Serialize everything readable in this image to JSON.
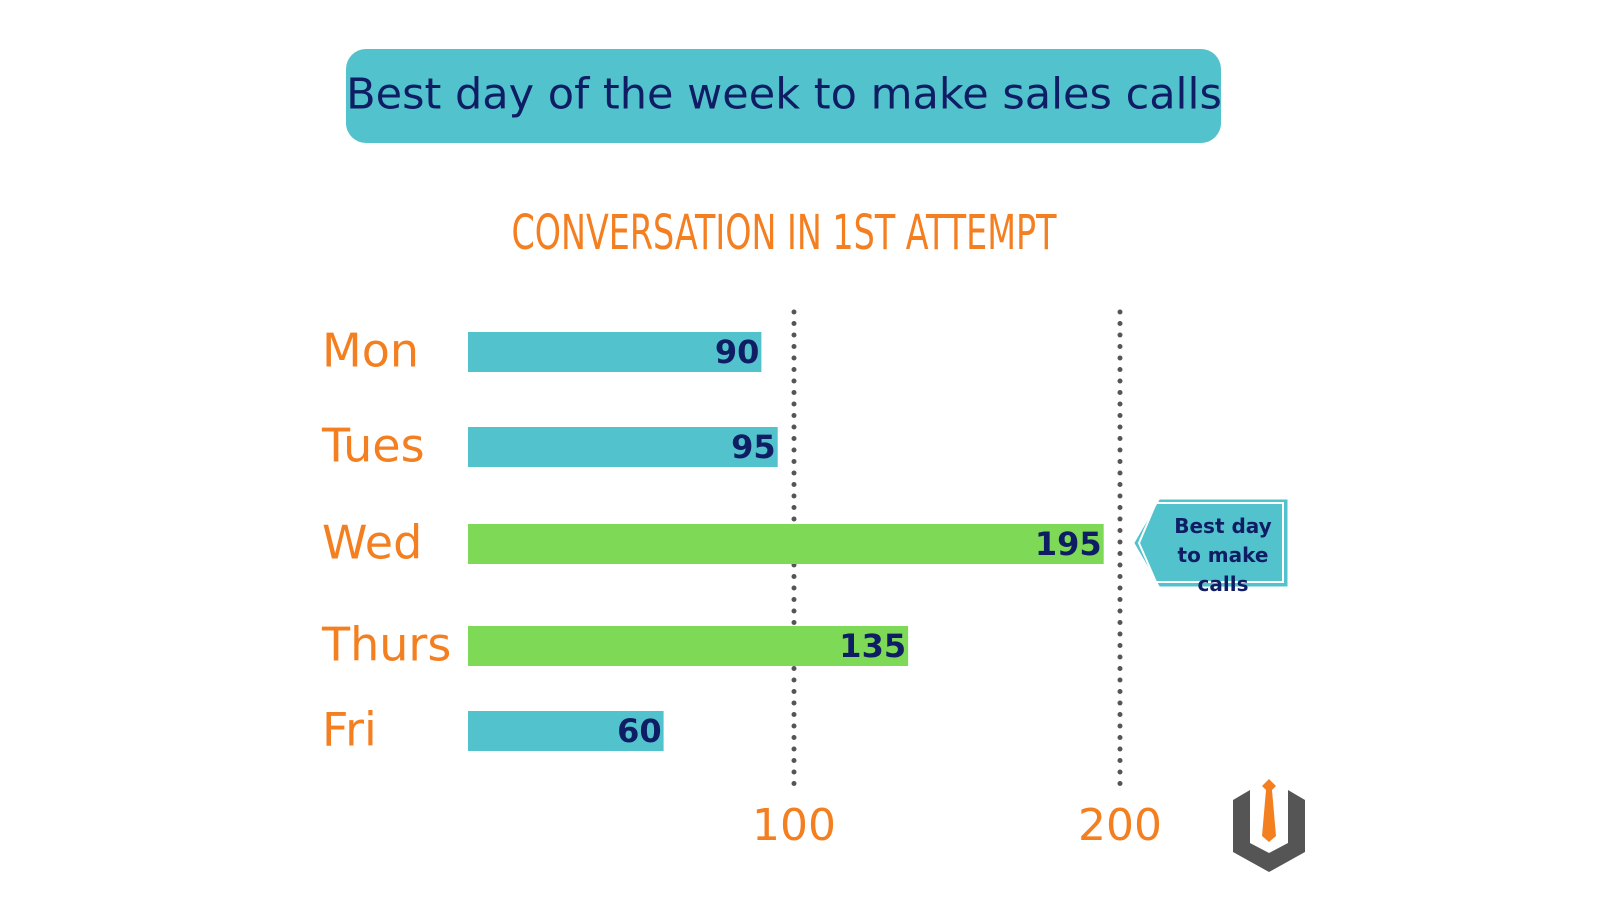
{
  "chart_data": {
    "type": "bar",
    "orientation": "horizontal",
    "title": "Best day of the week to make sales calls",
    "subtitle": "CONVERSATION IN 1ST ATTEMPT",
    "categories": [
      "Mon",
      "Tues",
      "Wed",
      "Thurs",
      "Fri"
    ],
    "values": [
      90,
      95,
      195,
      135,
      60
    ],
    "colors": [
      "#52c3cc",
      "#52c3cc",
      "#7ed957",
      "#7ed957",
      "#52c3cc"
    ],
    "xlim": [
      0,
      200
    ],
    "xticks": [
      100,
      200
    ],
    "grid": true,
    "annotation": "Best day to make calls"
  }
}
